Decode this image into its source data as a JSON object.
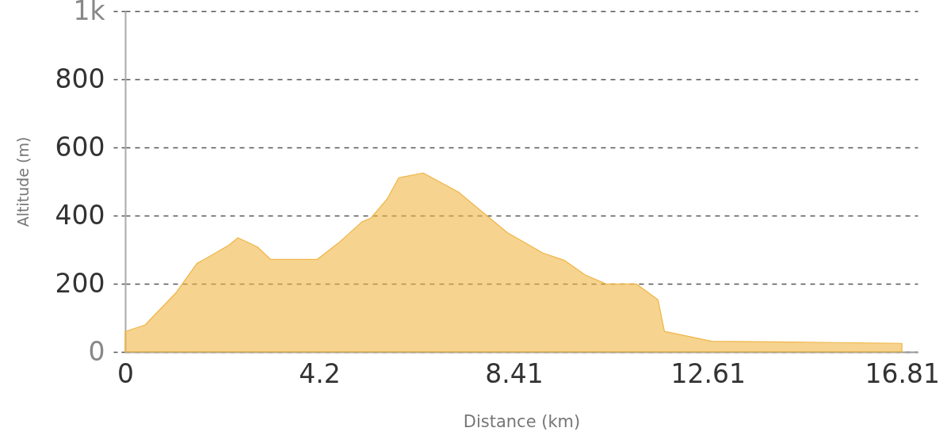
{
  "chart_data": {
    "type": "area",
    "xlabel": "Distance (km)",
    "ylabel": "Altitude (m)",
    "x": [
      0,
      0.43,
      1.09,
      1.55,
      2.24,
      2.44,
      2.86,
      3.15,
      4.15,
      4.61,
      5.12,
      5.32,
      5.67,
      5.92,
      6.45,
      7.21,
      8.27,
      9.04,
      9.5,
      9.95,
      10.41,
      11.07,
      11.53,
      11.67,
      12.7,
      14.44,
      16.81
    ],
    "values": [
      60,
      79,
      172,
      259,
      313,
      335,
      308,
      271,
      271,
      319,
      381,
      393,
      449,
      511,
      525,
      469,
      350,
      290,
      269,
      226,
      199,
      199,
      153,
      60,
      31,
      29,
      25
    ],
    "color": "#f0b545",
    "xlim": [
      0,
      17.15
    ],
    "xticks": [
      0,
      4.2,
      8.41,
      12.61,
      16.81
    ],
    "ylim": [
      0,
      1000
    ],
    "yticks": [
      0,
      200,
      400,
      600,
      800,
      {
        "value": 1000,
        "label": "1k"
      }
    ],
    "grid": "y"
  }
}
